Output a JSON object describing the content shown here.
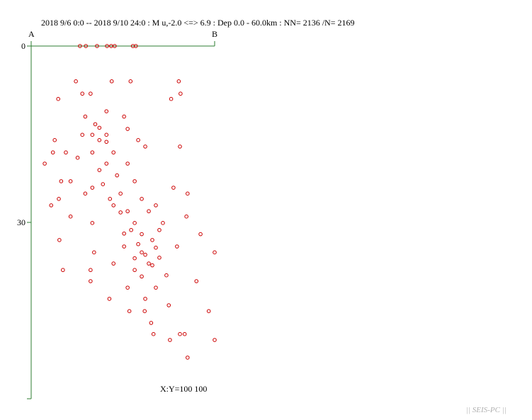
{
  "chart_data": {
    "type": "scatter",
    "title": "2018 9/6 0:0 -- 2018 9/10 24:0 :  M u,-2.0 <=> 6.9   :  Dep 0.0 - 60.0km :  NN= 2136 /N= 2169",
    "start_label": "A",
    "end_label": "B",
    "scale_label": "X:Y=100 100",
    "watermark": "|| SEIS-PC ||",
    "color": "#cc0000",
    "axis_color": "#2e7d32",
    "xlim": [
      0,
      31.2
    ],
    "ylim": [
      0,
      60
    ],
    "yticks": [
      0,
      30
    ],
    "y_inverted": true,
    "x": [
      8.3,
      9.3,
      11.2,
      12.9,
      13.6,
      14.2,
      17.3,
      17.8,
      7.6,
      13.7,
      16.9,
      25.1,
      4.6,
      8.7,
      10.1,
      25.4,
      23.8,
      12.8,
      9.2,
      15.8,
      10.9,
      16.4,
      10.4,
      12.8,
      8.7,
      18.2,
      11.6,
      4.0,
      19.4,
      25.3,
      14.0,
      10.4,
      3.7,
      5.9,
      7.9,
      2.3,
      12.8,
      16.4,
      11.6,
      14.6,
      5.1,
      6.7,
      17.6,
      10.4,
      24.2,
      26.6,
      9.2,
      15.2,
      4.7,
      13.4,
      18.8,
      3.4,
      14.0,
      21.2,
      6.7,
      16.4,
      20.0,
      26.4,
      10.4,
      17.6,
      22.4,
      28.8,
      4.8,
      18.8,
      20.6,
      15.8,
      24.8,
      31.2,
      10.7,
      18.8,
      21.8,
      14.0,
      20.0,
      5.4,
      10.1,
      17.6,
      23.0,
      10.1,
      28.1,
      16.4,
      21.2,
      13.3,
      19.4,
      23.4,
      16.7,
      19.3,
      30.2,
      20.4,
      20.8,
      25.3,
      26.1,
      23.6,
      31.2,
      26.6,
      17.0,
      18.2,
      19.4,
      20.6,
      17.6,
      15.8,
      21.2,
      18.8,
      15.2,
      12.2,
      12.8,
      11.6,
      21.8
    ],
    "y": [
      0,
      0,
      0,
      0,
      0,
      0,
      0,
      0,
      6.0,
      6.0,
      6.0,
      6.0,
      9.0,
      8.1,
      8.1,
      8.1,
      9.0,
      11.1,
      12.0,
      12.0,
      13.3,
      14.1,
      15.1,
      15.1,
      15.1,
      16.0,
      16.0,
      16.0,
      17.1,
      17.1,
      18.1,
      18.1,
      18.1,
      18.1,
      19.0,
      20.0,
      20.0,
      20.0,
      21.1,
      22.0,
      23.0,
      23.0,
      23.0,
      24.1,
      24.1,
      25.1,
      25.1,
      25.1,
      26.0,
      26.0,
      26.0,
      27.1,
      27.1,
      27.1,
      29.0,
      28.1,
      28.1,
      29.0,
      30.1,
      30.1,
      30.1,
      32.0,
      33.0,
      32.0,
      33.0,
      34.1,
      34.1,
      35.1,
      35.1,
      35.1,
      36.0,
      37.0,
      37.0,
      38.1,
      38.1,
      38.1,
      39.0,
      40.0,
      40.0,
      41.1,
      41.1,
      43.0,
      43.0,
      44.1,
      45.1,
      45.1,
      45.1,
      47.1,
      49.0,
      49.0,
      49.0,
      50.0,
      50.0,
      53.0,
      31.3,
      33.7,
      35.5,
      37.3,
      36.1,
      31.9,
      34.3,
      39.2,
      28.3,
      23.5,
      16.3,
      13.9,
      31.3
    ]
  }
}
